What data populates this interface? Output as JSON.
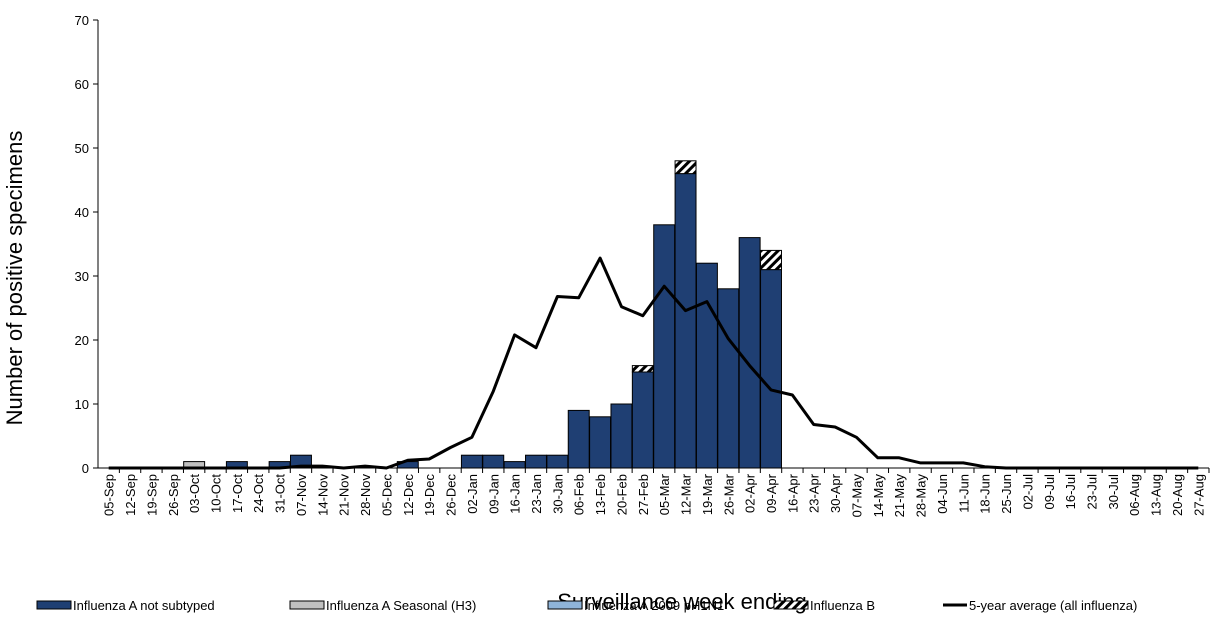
{
  "chart_data": {
    "type": "bar",
    "xlabel": "Surveillance week ending",
    "ylabel": "Number of positive specimens",
    "ylim": [
      0,
      70
    ],
    "yticks": [
      0,
      10,
      20,
      30,
      40,
      50,
      60,
      70
    ],
    "grid": false,
    "legend_position": "bottom",
    "stacked": true,
    "categories": [
      "05-Sep",
      "12-Sep",
      "19-Sep",
      "26-Sep",
      "03-Oct",
      "10-Oct",
      "17-Oct",
      "24-Oct",
      "31-Oct",
      "07-Nov",
      "14-Nov",
      "21-Nov",
      "28-Nov",
      "05-Dec",
      "12-Dec",
      "19-Dec",
      "26-Dec",
      "02-Jan",
      "09-Jan",
      "16-Jan",
      "23-Jan",
      "30-Jan",
      "06-Feb",
      "13-Feb",
      "20-Feb",
      "27-Feb",
      "05-Mar",
      "12-Mar",
      "19-Mar",
      "26-Mar",
      "02-Apr",
      "09-Apr",
      "16-Apr",
      "23-Apr",
      "30-Apr",
      "07-May",
      "14-May",
      "21-May",
      "28-May",
      "04-Jun",
      "11-Jun",
      "18-Jun",
      "25-Jun",
      "02-Jul",
      "09-Jul",
      "16-Jul",
      "23-Jul",
      "30-Jul",
      "06-Aug",
      "13-Aug",
      "20-Aug",
      "27-Aug"
    ],
    "series": [
      {
        "name": "Influenza A not subtyped",
        "kind": "bar",
        "color": "#1f3f73",
        "pattern": "solid",
        "values": [
          0,
          0,
          0,
          0,
          0,
          0,
          1,
          0,
          1,
          2,
          0,
          0,
          0,
          0,
          1,
          0,
          0,
          2,
          2,
          1,
          2,
          2,
          9,
          8,
          10,
          15,
          38,
          46,
          32,
          28,
          36,
          31,
          0,
          0,
          0,
          0,
          0,
          0,
          0,
          0,
          0,
          0,
          0,
          0,
          0,
          0,
          0,
          0,
          0,
          0,
          0,
          0
        ]
      },
      {
        "name": "Influenza A Seasonal (H3)",
        "kind": "bar",
        "color": "#c0c0c0",
        "pattern": "solid",
        "values": [
          0,
          0,
          0,
          0,
          1,
          0,
          0,
          0,
          0,
          0,
          0,
          0,
          0,
          0,
          0,
          0,
          0,
          0,
          0,
          0,
          0,
          0,
          0,
          0,
          0,
          0,
          0,
          0,
          0,
          0,
          0,
          0,
          0,
          0,
          0,
          0,
          0,
          0,
          0,
          0,
          0,
          0,
          0,
          0,
          0,
          0,
          0,
          0,
          0,
          0,
          0,
          0
        ]
      },
      {
        "name": "Influenza A 2009 pH1N1",
        "kind": "bar",
        "color": "#8fb4d9",
        "pattern": "solid",
        "values": [
          0,
          0,
          0,
          0,
          0,
          0,
          0,
          0,
          0,
          0,
          0,
          0,
          0,
          0,
          0,
          0,
          0,
          0,
          0,
          0,
          0,
          0,
          0,
          0,
          0,
          0,
          0,
          0,
          0,
          0,
          0,
          0,
          0,
          0,
          0,
          0,
          0,
          0,
          0,
          0,
          0,
          0,
          0,
          0,
          0,
          0,
          0,
          0,
          0,
          0,
          0,
          0
        ]
      },
      {
        "name": "Influenza B",
        "kind": "bar",
        "color": "#ffffff",
        "pattern": "hatch",
        "values": [
          0,
          0,
          0,
          0,
          0,
          0,
          0,
          0,
          0,
          0,
          0,
          0,
          0,
          0,
          0,
          0,
          0,
          0,
          0,
          0,
          0,
          0,
          0,
          0,
          0,
          1,
          0,
          2,
          0,
          0,
          0,
          3,
          0,
          0,
          0,
          0,
          0,
          0,
          0,
          0,
          0,
          0,
          0,
          0,
          0,
          0,
          0,
          0,
          0,
          0,
          0,
          0
        ]
      },
      {
        "name": "5-year average (all influenza)",
        "kind": "line",
        "color": "#000000",
        "values": [
          0,
          0,
          0,
          0,
          0,
          0,
          0,
          0,
          0,
          0.3,
          0.3,
          0,
          0.3,
          0,
          1.2,
          1.4,
          3.2,
          4.8,
          12,
          20.8,
          18.8,
          26.8,
          26.6,
          32.8,
          25.2,
          23.8,
          28.4,
          24.6,
          26,
          20.2,
          16,
          12.2,
          11.4,
          6.8,
          6.4,
          4.8,
          1.6,
          1.6,
          0.8,
          0.8,
          0.8,
          0.2,
          0,
          0,
          0,
          0,
          0,
          0,
          0,
          0,
          0,
          0
        ]
      }
    ]
  }
}
